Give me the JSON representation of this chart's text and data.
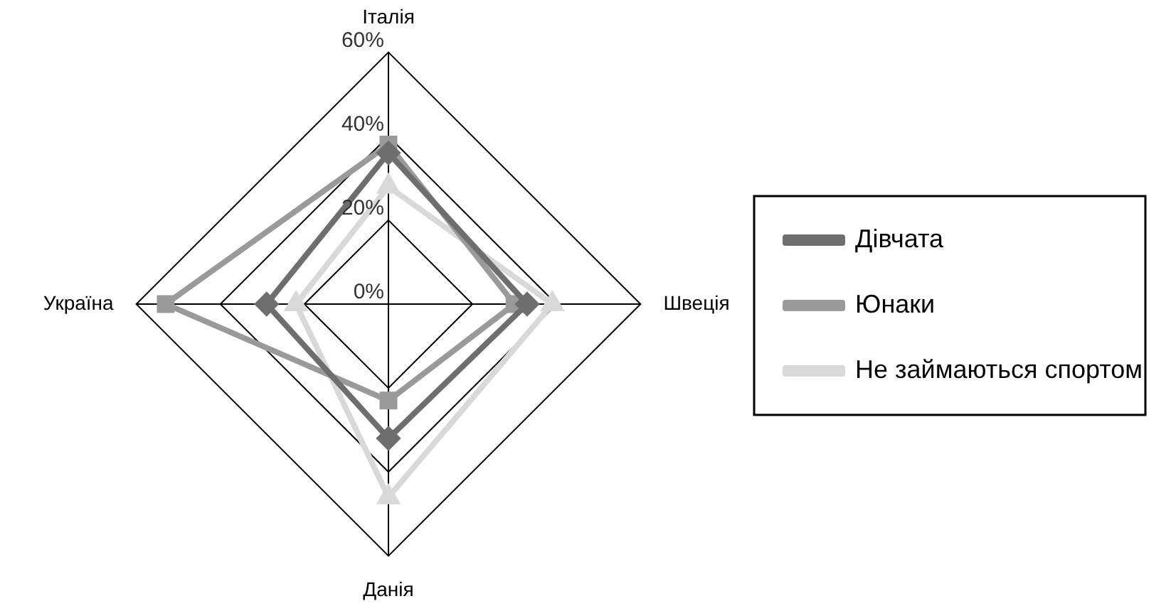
{
  "chart_data": {
    "type": "radar",
    "categories": [
      "Італія",
      "Швеція",
      "Данія",
      "Україна"
    ],
    "series": [
      {
        "name": "Дівчата",
        "color": "#6e6e6e",
        "marker": "diamond",
        "values": [
          36,
          33,
          32,
          29
        ]
      },
      {
        "name": "Юнаки",
        "color": "#9a9a9a",
        "marker": "square",
        "values": [
          38,
          30,
          23,
          53
        ]
      },
      {
        "name": "Не займаються спортом",
        "color": "#d9d9d9",
        "marker": "triangle",
        "values": [
          28,
          39,
          46,
          22
        ]
      }
    ],
    "ylim": [
      0,
      60
    ],
    "yticks": [
      {
        "value": 0,
        "label": "0%"
      },
      {
        "value": 20,
        "label": "20%"
      },
      {
        "value": 40,
        "label": "40%"
      },
      {
        "value": 60,
        "label": "60%"
      }
    ],
    "grid": true,
    "legend": "right",
    "line_style": "solid"
  }
}
